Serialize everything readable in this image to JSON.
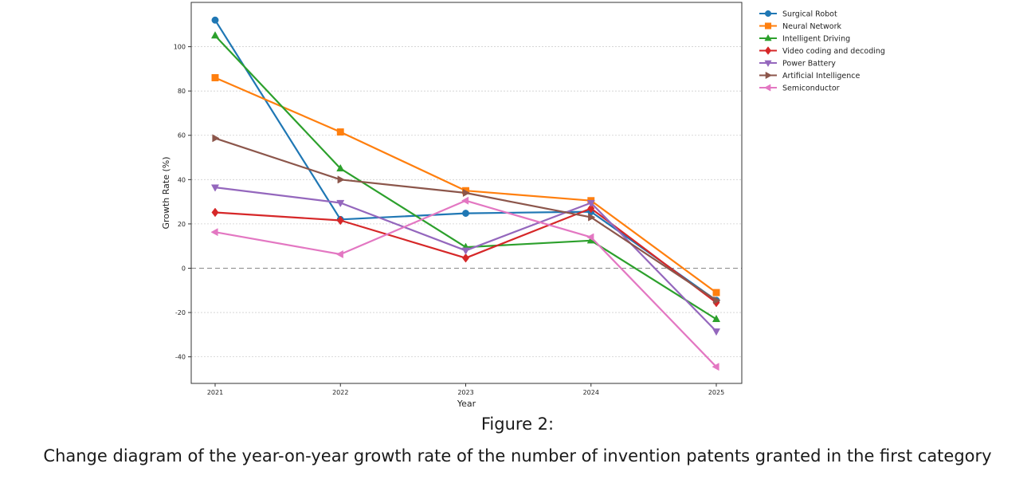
{
  "caption": {
    "figure_label": "Figure 2:",
    "text": "Change diagram of the year-on-year growth rate of the number of invention patents granted in the first category"
  },
  "chart_data": {
    "type": "line",
    "title": "",
    "xlabel": "Year",
    "ylabel": "Growth Rate (%)",
    "x": [
      2021,
      2022,
      2023,
      2024,
      2025
    ],
    "x_tick_labels": [
      "2021",
      "2022",
      "2023",
      "2024",
      "2025"
    ],
    "ylim": [
      -52,
      120
    ],
    "y_ticks": [
      -40,
      -20,
      0,
      20,
      40,
      60,
      80,
      100
    ],
    "y_tick_labels": [
      "-40",
      "-20",
      "0",
      "20",
      "40",
      "60",
      "80",
      "100"
    ],
    "grid": "horizontal-dotted",
    "zero_line": "dashed",
    "legend_position": "outside-top-right",
    "series": [
      {
        "name": "Surgical Robot",
        "color": "#1f77b4",
        "marker": "circle",
        "values": [
          112,
          22,
          24.8,
          25.5,
          -14.5
        ]
      },
      {
        "name": "Neural Network",
        "color": "#ff7f0e",
        "marker": "square",
        "values": [
          86,
          61.5,
          35,
          30.5,
          -11
        ]
      },
      {
        "name": "Intelligent Driving",
        "color": "#2ca02c",
        "marker": "triangle-up",
        "values": [
          105,
          45,
          9.5,
          12.5,
          -23
        ]
      },
      {
        "name": "Video coding and decoding",
        "color": "#d62728",
        "marker": "diamond",
        "values": [
          25.2,
          21.6,
          4.6,
          27,
          -15.5
        ]
      },
      {
        "name": "Power Battery",
        "color": "#9467bd",
        "marker": "triangle-down",
        "values": [
          36.5,
          29.5,
          8,
          29.5,
          -28.5
        ]
      },
      {
        "name": "Artificial Intelligence",
        "color": "#8c564b",
        "marker": "triangle-right",
        "values": [
          58.7,
          40,
          34,
          23,
          -14.5
        ]
      },
      {
        "name": "Semiconductor",
        "color": "#e377c2",
        "marker": "triangle-left",
        "values": [
          16.3,
          6.3,
          30.5,
          14,
          -44.5
        ]
      }
    ]
  }
}
